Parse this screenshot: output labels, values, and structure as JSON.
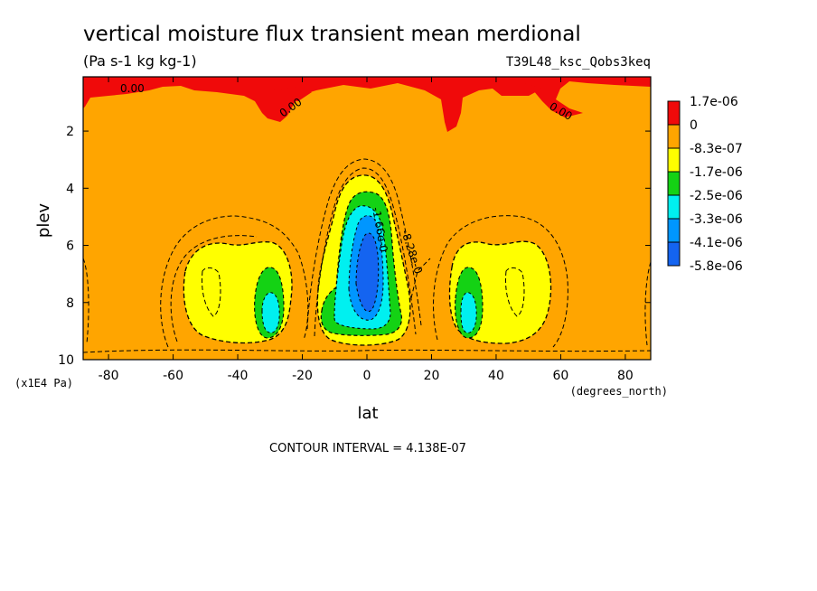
{
  "chart_data": {
    "type": "heatmap",
    "title": "vertical moisture flux transient mean merdional",
    "subtitle": "(Pa s-1 kg kg-1)",
    "run_label": "T39L48_ksc_Qobs3keq",
    "xlabel": "lat",
    "x_units": "(degrees_north)",
    "ylabel": "plev",
    "y_units": "(x1E4 Pa)",
    "xlim": [
      -87.86,
      87.86
    ],
    "ylim": [
      0.1,
      10
    ],
    "y_reversed": true,
    "x_ticks": [
      "-80",
      "-60",
      "-40",
      "-20",
      "0",
      "20",
      "40",
      "60",
      "80"
    ],
    "x_tick_values": [
      -80,
      -60,
      -40,
      -20,
      0,
      20,
      40,
      60,
      80
    ],
    "y_ticks": [
      "2",
      "4",
      "6",
      "8",
      "10"
    ],
    "y_tick_values": [
      2,
      4,
      6,
      8,
      10
    ],
    "contour_interval_text": "CONTOUR INTERVAL = 4.138E-07",
    "contour_labels": [
      "0.00",
      "0.00",
      "0.00",
      "-1.66e-0",
      "-8.28e-0"
    ],
    "legend": {
      "placement": "right",
      "labels": [
        "1.7e-06",
        "0",
        "-8.3e-07",
        "-1.7e-06",
        "-2.5e-06",
        "-3.3e-06",
        "-4.1e-06",
        "-5.8e-06"
      ],
      "colors": [
        "#f00a0a",
        "#ffa500",
        "#ffff00",
        "#14d214",
        "#00f0f0",
        "#0096ff",
        "#1464f0"
      ]
    },
    "colors": {
      "positive": "#f00a0a",
      "background": "#ffa500",
      "level1": "#ffff00",
      "level2": "#14d214",
      "level3": "#00f0f0",
      "level4": "#0096ff",
      "level5": "#1464f0"
    },
    "features": [
      {
        "kind": "min",
        "lat": 2,
        "plev": 6.8,
        "level": 5
      },
      {
        "kind": "min",
        "lat": -31,
        "plev": 8.3,
        "level": 3
      },
      {
        "kind": "min",
        "lat": 31,
        "plev": 8.3,
        "level": 3
      },
      {
        "kind": "max",
        "lat": 0,
        "plev": 0.6,
        "level": 0
      }
    ]
  }
}
